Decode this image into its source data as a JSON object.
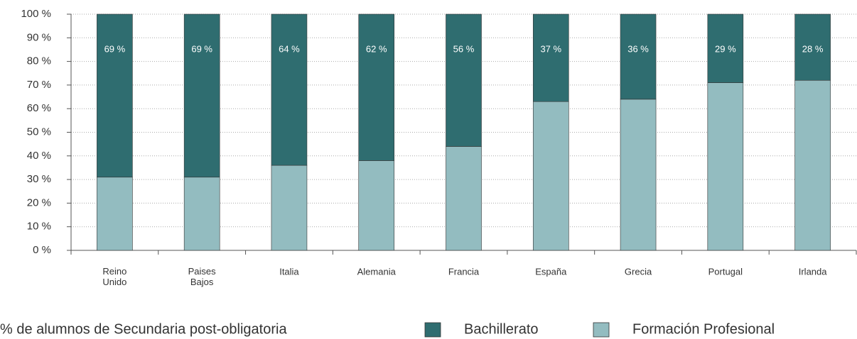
{
  "chart_data": {
    "type": "stacked-bar",
    "categories": [
      "Reino Unido",
      "Paises Bajos",
      "Italia",
      "Alemania",
      "Francia",
      "España",
      "Grecia",
      "Portugal",
      "Irlanda"
    ],
    "series": [
      {
        "name": "Formación Profesional",
        "color": "#93bcc0",
        "values": [
          31,
          31,
          36,
          38,
          44,
          63,
          64,
          71,
          72
        ]
      },
      {
        "name": "Bachillerato",
        "color": "#2f6d70",
        "values": [
          69,
          69,
          64,
          62,
          56,
          37,
          36,
          29,
          28
        ],
        "value_labels": [
          "69 %",
          "69 %",
          "64 %",
          "62 %",
          "56 %",
          "37 %",
          "36 %",
          "29 %",
          "28 %"
        ]
      }
    ],
    "legend_title": "% de alumnos de Secundaria post-obligatoria",
    "ylim": [
      0,
      100
    ],
    "yticks": [
      {
        "value": 0,
        "label": "0 %"
      },
      {
        "value": 10,
        "label": "10 %"
      },
      {
        "value": 20,
        "label": "20 %"
      },
      {
        "value": 30,
        "label": "30 %"
      },
      {
        "value": 40,
        "label": "40 %"
      },
      {
        "value": 50,
        "label": "50 %"
      },
      {
        "value": 60,
        "label": "60 %"
      },
      {
        "value": 70,
        "label": "70 %"
      },
      {
        "value": 80,
        "label": "80 %"
      },
      {
        "value": 90,
        "label": "90 %"
      },
      {
        "value": 100,
        "label": "100 %"
      }
    ],
    "grid": true
  }
}
